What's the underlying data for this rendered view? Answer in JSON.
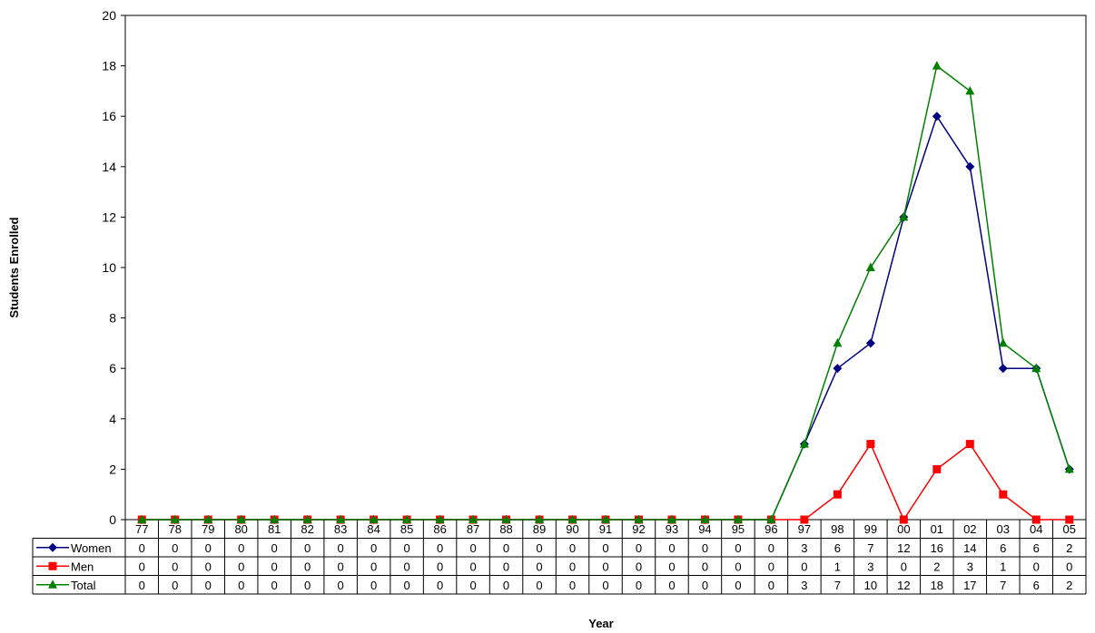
{
  "chart_data": {
    "type": "line",
    "title": "",
    "xlabel": "Year",
    "ylabel": "Students Enrolled",
    "ylim": [
      0,
      20
    ],
    "yticks": [
      0,
      2,
      4,
      6,
      8,
      10,
      12,
      14,
      16,
      18,
      20
    ],
    "grid": false,
    "legend": "data-table",
    "categories": [
      "77",
      "78",
      "79",
      "80",
      "81",
      "82",
      "83",
      "84",
      "85",
      "86",
      "87",
      "88",
      "89",
      "90",
      "91",
      "92",
      "93",
      "94",
      "95",
      "96",
      "97",
      "98",
      "99",
      "00",
      "01",
      "02",
      "03",
      "04",
      "05"
    ],
    "series": [
      {
        "name": "Women",
        "color": "#000080",
        "marker": "diamond",
        "values": [
          0,
          0,
          0,
          0,
          0,
          0,
          0,
          0,
          0,
          0,
          0,
          0,
          0,
          0,
          0,
          0,
          0,
          0,
          0,
          0,
          3,
          6,
          7,
          12,
          16,
          14,
          6,
          6,
          2
        ]
      },
      {
        "name": "Men",
        "color": "#ff0000",
        "marker": "square",
        "values": [
          0,
          0,
          0,
          0,
          0,
          0,
          0,
          0,
          0,
          0,
          0,
          0,
          0,
          0,
          0,
          0,
          0,
          0,
          0,
          0,
          0,
          1,
          3,
          0,
          2,
          3,
          1,
          0,
          0
        ]
      },
      {
        "name": "Total",
        "color": "#008000",
        "marker": "triangle",
        "values": [
          0,
          0,
          0,
          0,
          0,
          0,
          0,
          0,
          0,
          0,
          0,
          0,
          0,
          0,
          0,
          0,
          0,
          0,
          0,
          0,
          3,
          7,
          10,
          12,
          18,
          17,
          7,
          6,
          2
        ]
      }
    ]
  }
}
